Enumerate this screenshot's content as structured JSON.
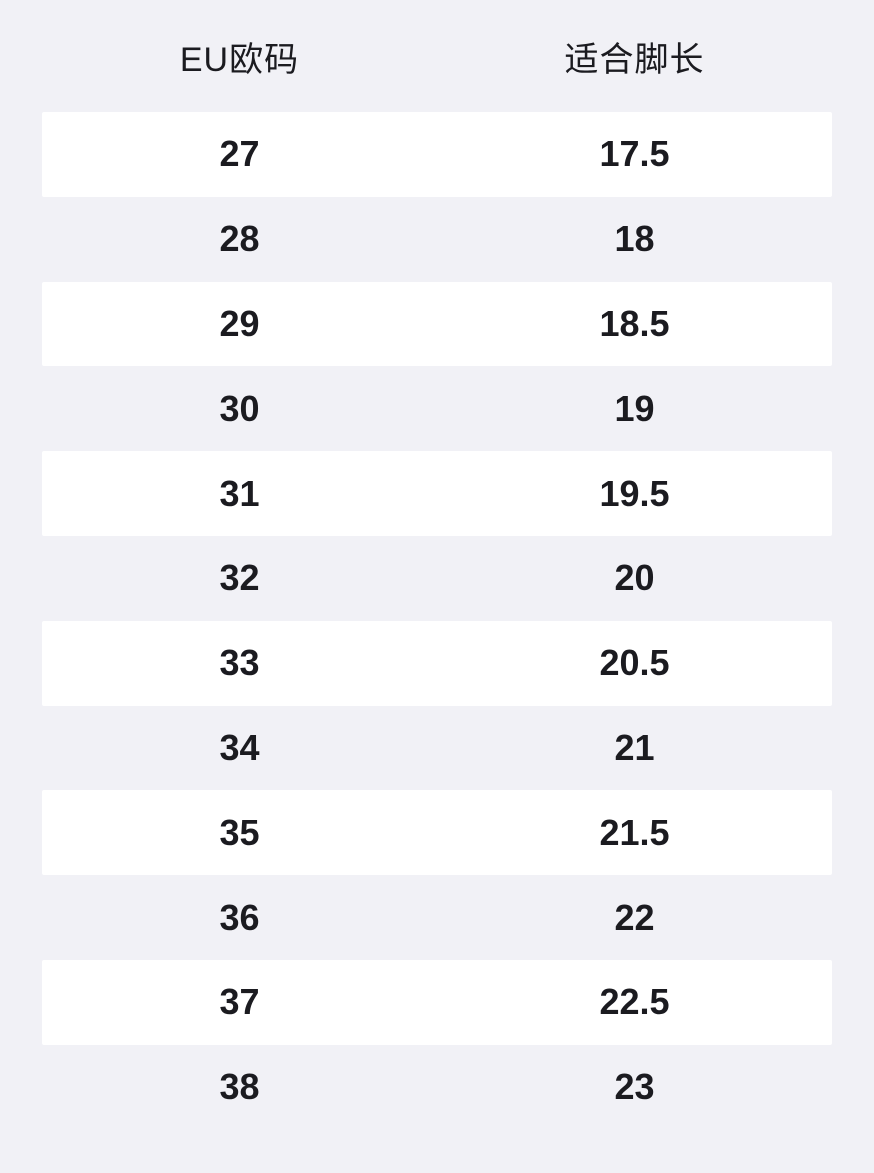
{
  "table": {
    "columns": [
      {
        "label": "EU欧码"
      },
      {
        "label": "适合脚长"
      }
    ],
    "rows": [
      {
        "eu": "27",
        "foot": "17.5"
      },
      {
        "eu": "28",
        "foot": "18"
      },
      {
        "eu": "29",
        "foot": "18.5"
      },
      {
        "eu": "30",
        "foot": "19"
      },
      {
        "eu": "31",
        "foot": "19.5"
      },
      {
        "eu": "32",
        "foot": "20"
      },
      {
        "eu": "33",
        "foot": "20.5"
      },
      {
        "eu": "34",
        "foot": "21"
      },
      {
        "eu": "35",
        "foot": "21.5"
      },
      {
        "eu": "36",
        "foot": "22"
      },
      {
        "eu": "37",
        "foot": "22.5"
      },
      {
        "eu": "38",
        "foot": "23"
      }
    ]
  },
  "colors": {
    "page_background": "#f1f1f6",
    "row_highlight": "#ffffff",
    "text": "#1b1b20"
  },
  "chart_data": {
    "type": "table",
    "title": "",
    "columns": [
      "EU欧码",
      "适合脚长"
    ],
    "rows": [
      [
        27,
        17.5
      ],
      [
        28,
        18
      ],
      [
        29,
        18.5
      ],
      [
        30,
        19
      ],
      [
        31,
        19.5
      ],
      [
        32,
        20
      ],
      [
        33,
        20.5
      ],
      [
        34,
        21
      ],
      [
        35,
        21.5
      ],
      [
        36,
        22
      ],
      [
        37,
        22.5
      ],
      [
        38,
        23
      ]
    ],
    "layout": "alternating row stripes, white on odd data rows, two centered columns"
  }
}
